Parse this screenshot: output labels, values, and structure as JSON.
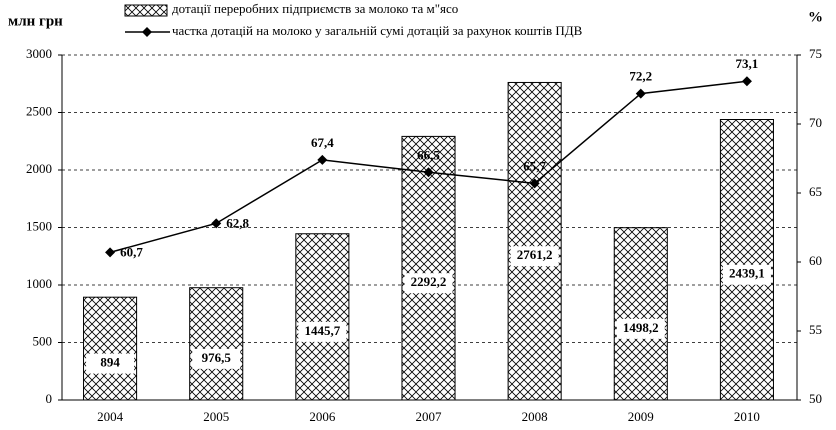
{
  "chart_data": {
    "type": "bar",
    "y_label": "млн грн",
    "y2_label": "%",
    "categories": [
      "2004",
      "2005",
      "2006",
      "2007",
      "2008",
      "2009",
      "2010"
    ],
    "series": [
      {
        "name": "дотації переробних підприємств за молоко та м\"ясо",
        "type": "bar",
        "color": "#000000",
        "values": [
          894,
          976.5,
          1445.7,
          2292.2,
          2761.2,
          1498.2,
          2439.1
        ],
        "value_labels": [
          "894",
          "976,5",
          "1445,7",
          "2292,2",
          "2761,2",
          "1498,2",
          "2439,1"
        ]
      },
      {
        "name": "частка дотацій на молоко у загальній сумі дотацій за рахунок коштів ПДВ",
        "type": "line",
        "axis": "y2",
        "color": "#000000",
        "values": [
          60.7,
          62.8,
          67.4,
          66.5,
          65.7,
          72.2,
          73.1
        ],
        "value_labels": [
          "60,7",
          "62,8",
          "67,4",
          "66,5",
          "65,7",
          "72,2",
          "73,1"
        ]
      }
    ],
    "ylim": [
      0,
      3000
    ],
    "yticks": [
      0,
      500,
      1000,
      1500,
      2000,
      2500,
      3000
    ],
    "y2lim": [
      50,
      75
    ],
    "y2ticks": [
      50,
      55,
      60,
      65,
      70,
      75
    ],
    "grid": true,
    "legend": "top"
  }
}
